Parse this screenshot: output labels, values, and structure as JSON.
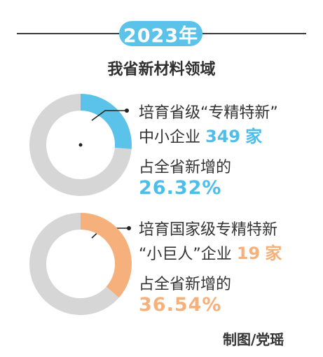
{
  "header": {
    "year": "2023年",
    "subtitle": "我省新材料领域"
  },
  "items": [
    {
      "line1": "培育省级“专精特新”",
      "line2_prefix": "中小企业",
      "count": "349",
      "unit": "家",
      "line3": "占全省新增的",
      "percent_text": "26.32%"
    },
    {
      "line1": "培育国家级专精特新",
      "line2_prefix": "“小巨人”企业",
      "count": "19",
      "unit": "家",
      "line3": "占全省新增的",
      "percent_text": "36.54%"
    }
  ],
  "credit": "制图/党瑶",
  "colors": {
    "accent_blue": "#5bc3ea",
    "accent_orange": "#f6b07c",
    "ring_gray": "#d6d6d6"
  },
  "chart_data": [
    {
      "type": "pie",
      "style": "donut",
      "slices": [
        {
          "value": 26.32,
          "color": "#5bc3ea"
        },
        {
          "value": 73.68,
          "color": "#d6d6d6"
        }
      ]
    },
    {
      "type": "pie",
      "style": "donut",
      "slices": [
        {
          "value": 36.54,
          "color": "#f6b07c"
        },
        {
          "value": 63.46,
          "color": "#d6d6d6"
        }
      ]
    }
  ]
}
